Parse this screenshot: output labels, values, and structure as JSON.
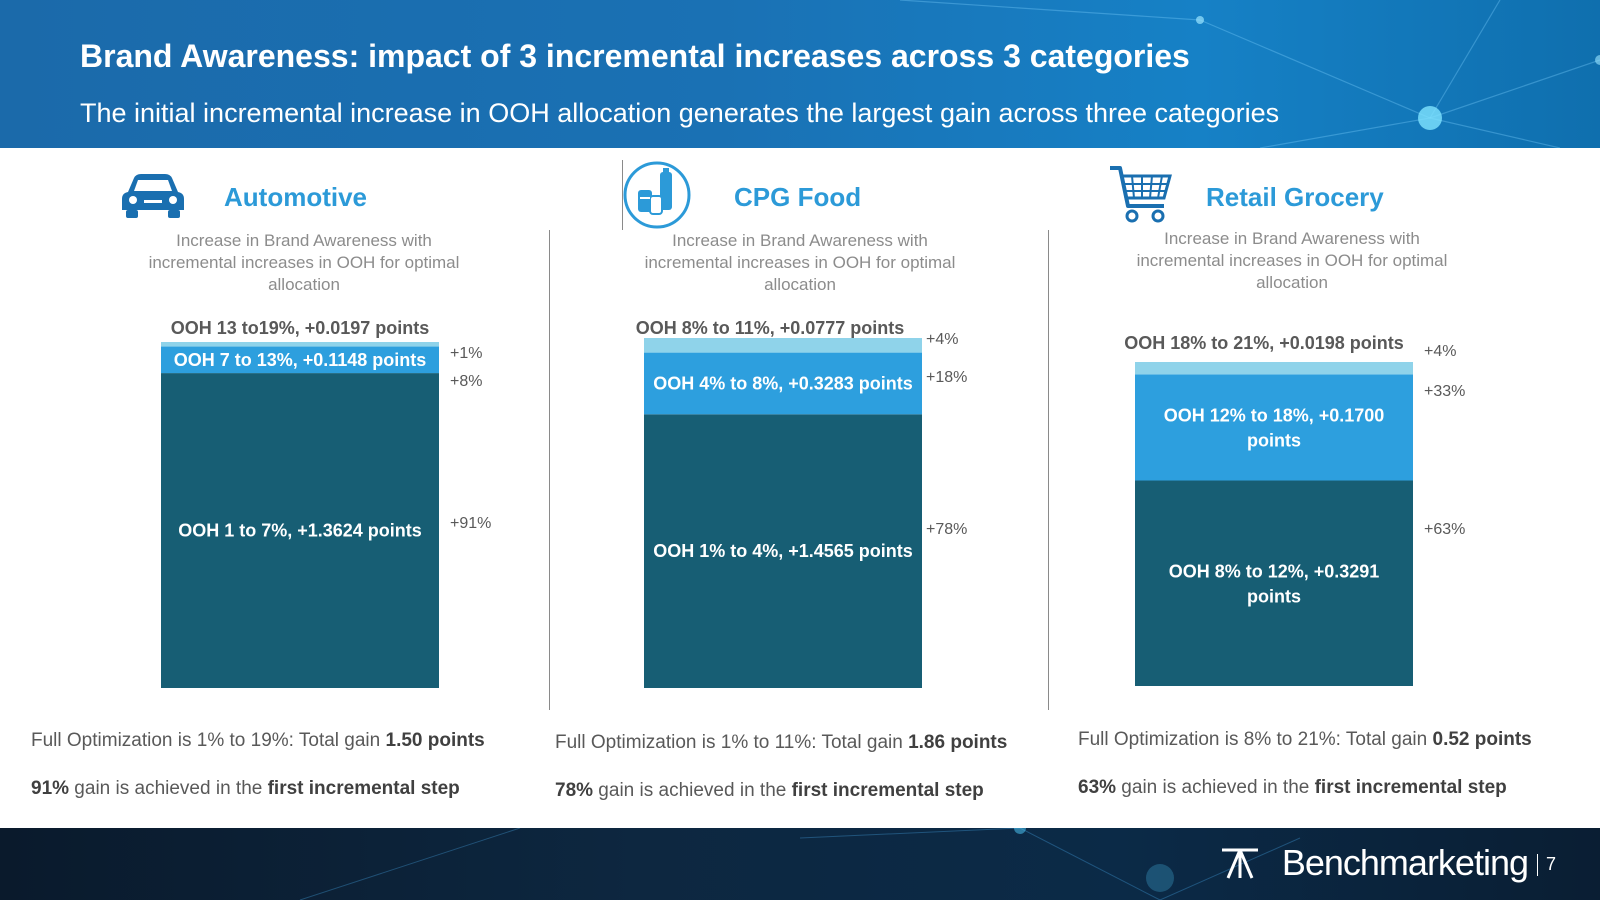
{
  "header": {
    "title": "Brand Awareness: impact of 3 incremental increases across 3 categories",
    "subtitle": "The initial incremental increase in OOH allocation generates the largest gain across three categories"
  },
  "colors": {
    "header_blue": "#1a71b4",
    "accent_blue": "#2c9ad8",
    "seg_dark": "#175e74",
    "seg_mid": "#2d9fde",
    "seg_light": "#8fd3ea"
  },
  "panels": [
    {
      "title": "Automotive",
      "icon": "car-icon",
      "description": "Increase in Brand Awareness with incremental increases in OOH for optimal allocation",
      "footer_line1": {
        "prefix": "Full Optimization is 1% to 19%: Total gain ",
        "bold": "1.50 points"
      },
      "footer_line2": {
        "bold1": "91%",
        "middle": " gain is achieved in the ",
        "bold2": "first incremental step"
      }
    },
    {
      "title": "CPG Food",
      "icon": "food-cans-icon",
      "description": "Increase in Brand Awareness with incremental increases in OOH for optimal allocation",
      "footer_line1": {
        "prefix": "Full Optimization is 1% to 11%: Total gain ",
        "bold": "1.86 points"
      },
      "footer_line2": {
        "bold1": "78%",
        "middle": " gain is achieved in the ",
        "bold2": "first incremental step"
      }
    },
    {
      "title": "Retail Grocery",
      "icon": "shopping-cart-icon",
      "description": "Increase in Brand Awareness with incremental increases in OOH for optimal allocation",
      "footer_line1": {
        "prefix": "Full Optimization is 8% to 21%: Total gain ",
        "bold": "0.52 points"
      },
      "footer_line2": {
        "bold1": "63%",
        "middle": " gain is achieved in the ",
        "bold2": "first incremental step"
      }
    }
  ],
  "chart_data": [
    {
      "type": "bar",
      "stacked": true,
      "category": "Automotive",
      "segments": [
        {
          "label": "OOH 1 to 7%, +1.3624 points",
          "value": 1.3624,
          "share_label": "+91%"
        },
        {
          "label": "OOH 7 to 13%, +0.1148 points",
          "value": 0.1148,
          "share_label": "+8%"
        },
        {
          "label": "OOH 13 to19%, +0.0197 points",
          "value": 0.0197,
          "share_label": "+1%"
        }
      ]
    },
    {
      "type": "bar",
      "stacked": true,
      "category": "CPG Food",
      "segments": [
        {
          "label": "OOH 1% to 4%, +1.4565 points",
          "value": 1.4565,
          "share_label": "+78%"
        },
        {
          "label": "OOH 4% to 8%, +0.3283 points",
          "value": 0.3283,
          "share_label": "+18%"
        },
        {
          "label": "OOH 8% to 11%, +0.0777 points",
          "value": 0.0777,
          "share_label": "+4%"
        }
      ]
    },
    {
      "type": "bar",
      "stacked": true,
      "category": "Retail Grocery",
      "segments": [
        {
          "label": "OOH 8% to 12%, +0.3291 points",
          "value": 0.3291,
          "share_label": "+63%"
        },
        {
          "label": "OOH 12% to 18%, +0.1700 points",
          "value": 0.17,
          "share_label": "+33%"
        },
        {
          "label": "OOH 18% to 21%, +0.0198 points",
          "value": 0.0198,
          "share_label": "+4%"
        }
      ]
    }
  ],
  "footer": {
    "brand": "Benchmarketing",
    "page": "7"
  }
}
